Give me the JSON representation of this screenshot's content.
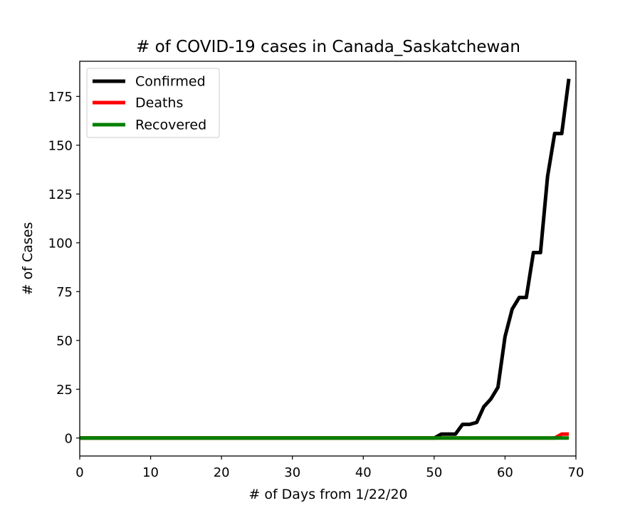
{
  "chart_data": {
    "type": "line",
    "title": "# of COVID-19 cases in Canada_Saskatchewan",
    "xlabel": "# of Days from 1/22/20",
    "ylabel": "# of Cases",
    "xlim": [
      0,
      70
    ],
    "ylim": [
      -9.2,
      193
    ],
    "x_ticks": [
      0,
      10,
      20,
      30,
      40,
      50,
      60,
      70
    ],
    "y_ticks": [
      0,
      25,
      50,
      75,
      100,
      125,
      150,
      175
    ],
    "grid": false,
    "legend_position": "top-left",
    "series": [
      {
        "name": "Confirmed",
        "color": "#000000",
        "points": [
          [
            0,
            0
          ],
          [
            50,
            0
          ],
          [
            51,
            2
          ],
          [
            52,
            2
          ],
          [
            53,
            2
          ],
          [
            54,
            7
          ],
          [
            55,
            7
          ],
          [
            56,
            8
          ],
          [
            57,
            16
          ],
          [
            58,
            20
          ],
          [
            59,
            26
          ],
          [
            60,
            52
          ],
          [
            61,
            66
          ],
          [
            62,
            72
          ],
          [
            63,
            72
          ],
          [
            64,
            95
          ],
          [
            65,
            95
          ],
          [
            66,
            134
          ],
          [
            67,
            156
          ],
          [
            68,
            156
          ],
          [
            69,
            184
          ]
        ]
      },
      {
        "name": "Deaths",
        "color": "#ff0000",
        "points": [
          [
            0,
            0
          ],
          [
            67,
            0
          ],
          [
            68,
            2
          ],
          [
            69,
            2
          ]
        ]
      },
      {
        "name": "Recovered",
        "color": "#008000",
        "points": [
          [
            0,
            0
          ],
          [
            69,
            0
          ]
        ]
      }
    ]
  }
}
